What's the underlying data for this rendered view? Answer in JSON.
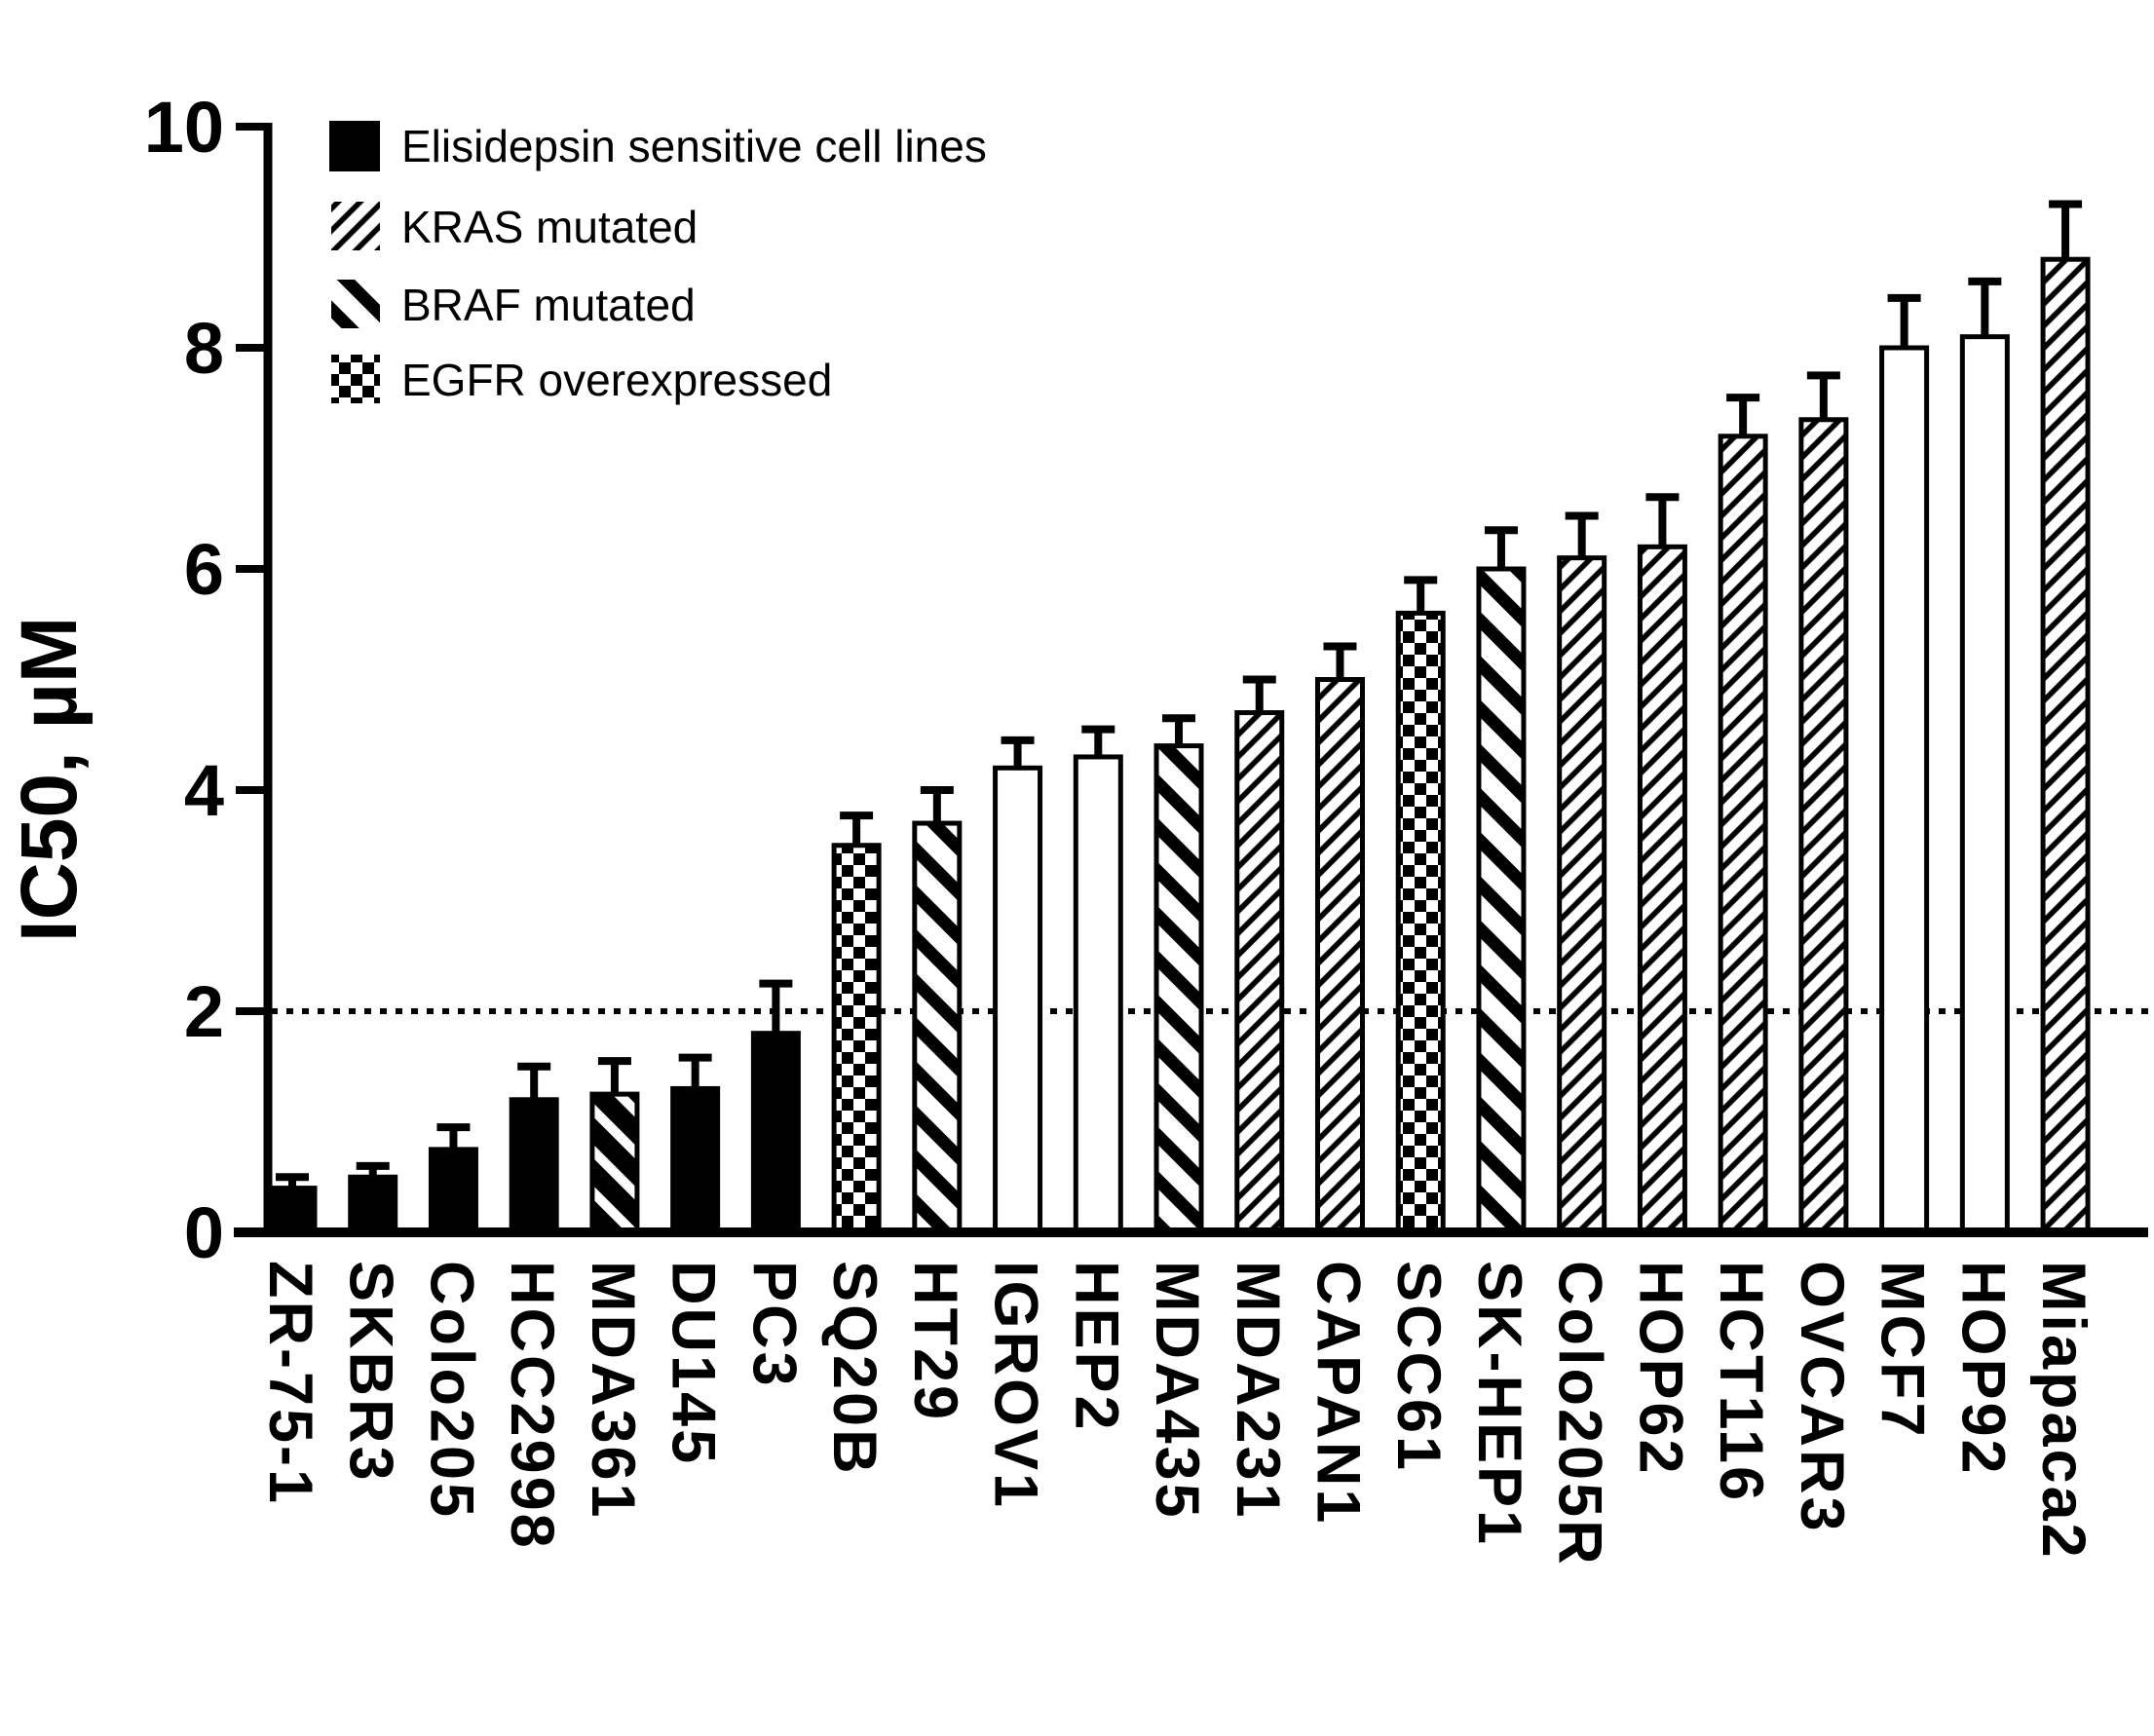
{
  "chart_data": {
    "type": "bar",
    "title": "",
    "xlabel": "",
    "ylabel": "IC50, µM",
    "ylim": [
      0,
      10
    ],
    "yticks": [
      0,
      2,
      4,
      6,
      8,
      10
    ],
    "grid": false,
    "reference_line": {
      "y": 2,
      "style": "dotted"
    },
    "legend_position": "top-left",
    "categories": [
      "ZR-75-1",
      "SKBR3",
      "Colo205",
      "HCC2998",
      "MDA361",
      "DU145",
      "PC3",
      "SQ20B",
      "HT29",
      "IGROV1",
      "HEP2",
      "MDA435",
      "MDA231",
      "CAPAN1",
      "SCC61",
      "SK-HEP1",
      "Colo205R",
      "HOP62",
      "HCT116",
      "OVCAR3",
      "MCF7",
      "HOP92",
      "Miapaca2"
    ],
    "values": [
      0.4,
      0.5,
      0.75,
      1.2,
      1.25,
      1.3,
      1.8,
      3.5,
      3.7,
      4.2,
      4.3,
      4.4,
      4.7,
      5.0,
      5.6,
      6.0,
      6.1,
      6.2,
      7.2,
      7.35,
      8.0,
      8.1,
      8.8
    ],
    "error_upper": [
      0.1,
      0.1,
      0.2,
      0.3,
      0.3,
      0.28,
      0.45,
      0.27,
      0.3,
      0.25,
      0.25,
      0.25,
      0.3,
      0.3,
      0.3,
      0.35,
      0.38,
      0.45,
      0.35,
      0.4,
      0.45,
      0.5,
      0.5
    ],
    "bar_styles": [
      "sensitive",
      "sensitive",
      "sensitive",
      "sensitive",
      "sensitive+braf",
      "sensitive",
      "sensitive",
      "egfr",
      "braf",
      "none",
      "none",
      "braf",
      "kras",
      "kras",
      "egfr",
      "braf",
      "kras",
      "kras",
      "kras",
      "kras",
      "none",
      "none",
      "kras"
    ],
    "legend": [
      {
        "label": "Elisidepsin sensitive cell lines",
        "style": "sensitive",
        "icon": "solid-black-swatch"
      },
      {
        "label": "KRAS mutated",
        "style": "kras",
        "icon": "thin-diagonal-hatch-swatch"
      },
      {
        "label": "BRAF mutated",
        "style": "braf",
        "icon": "bold-diagonal-stripe-swatch"
      },
      {
        "label": "EGFR overexpressed",
        "style": "egfr",
        "icon": "checkerboard-swatch"
      }
    ],
    "colors": {
      "foreground": "#000000",
      "background": "#ffffff"
    }
  }
}
